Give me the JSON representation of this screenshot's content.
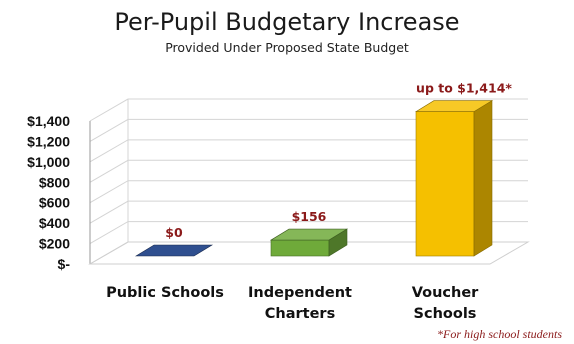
{
  "chart_data": {
    "type": "bar",
    "title": "Per-Pupil Budgetary Increase",
    "subtitle": "Provided Under Proposed State Budget",
    "categories": [
      [
        "Public Schools"
      ],
      [
        "Independent",
        "Charters"
      ],
      [
        "Voucher",
        "Schools"
      ]
    ],
    "values": [
      0,
      156,
      1414
    ],
    "data_labels": [
      "$0",
      "$156",
      "up to $1,414*"
    ],
    "bar_colors": [
      "#2f4f8f",
      "#6faa3a",
      "#f5c000"
    ],
    "ylim": [
      0,
      1400
    ],
    "yticks": [
      0,
      200,
      400,
      600,
      800,
      1000,
      1200,
      1400
    ],
    "ytick_labels": [
      "$-",
      "$200",
      "$400",
      "$600",
      "$800",
      "$1,000",
      "$1,200",
      "$1,400"
    ],
    "grid": true,
    "footnote": "*For high school students"
  }
}
